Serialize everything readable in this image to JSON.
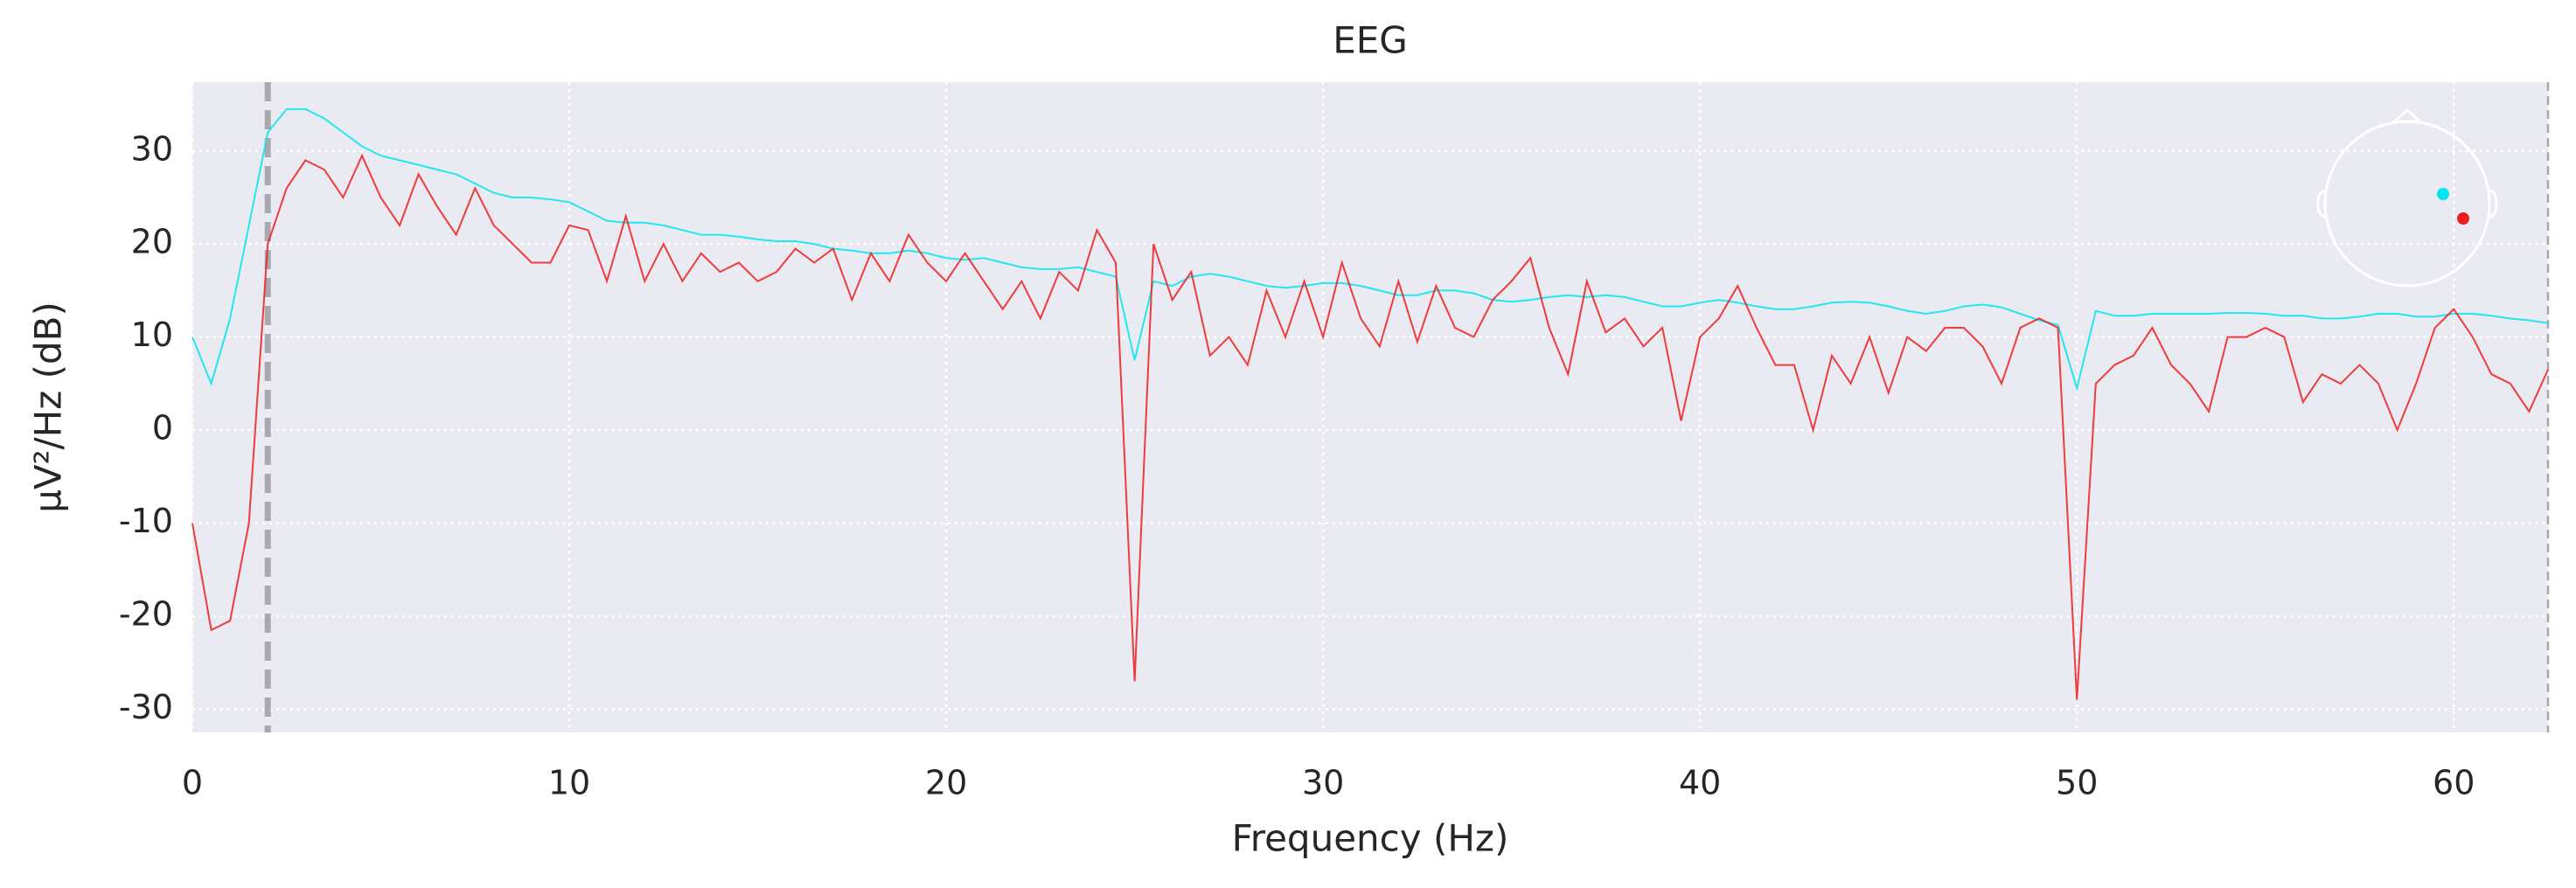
{
  "chart_data": {
    "type": "line",
    "title": "EEG",
    "xlabel": "Frequency (Hz)",
    "ylabel": "µV²/Hz (dB)",
    "x": [
      0,
      0.5,
      1,
      1.5,
      2,
      2.5,
      3,
      3.5,
      4,
      4.5,
      5,
      5.5,
      6,
      6.5,
      7,
      7.5,
      8,
      8.5,
      9,
      9.5,
      10,
      10.5,
      11,
      11.5,
      12,
      12.5,
      13,
      13.5,
      14,
      14.5,
      15,
      15.5,
      16,
      16.5,
      17,
      17.5,
      18,
      18.5,
      19,
      19.5,
      20,
      20.5,
      21,
      21.5,
      22,
      22.5,
      23,
      23.5,
      24,
      24.5,
      25,
      25.5,
      26,
      26.5,
      27,
      27.5,
      28,
      28.5,
      29,
      29.5,
      30,
      30.5,
      31,
      31.5,
      32,
      32.5,
      33,
      33.5,
      34,
      34.5,
      35,
      35.5,
      36,
      36.5,
      37,
      37.5,
      38,
      38.5,
      39,
      39.5,
      40,
      40.5,
      41,
      41.5,
      42,
      42.5,
      43,
      43.5,
      44,
      44.5,
      45,
      45.5,
      46,
      46.5,
      47,
      47.5,
      48,
      48.5,
      49,
      49.5,
      50,
      50.5,
      51,
      51.5,
      52,
      52.5,
      53,
      53.5,
      54,
      54.5,
      55,
      55.5,
      56,
      56.5,
      57,
      57.5,
      58,
      58.5,
      59,
      59.5,
      60,
      60.5,
      61,
      61.5,
      62,
      62.5
    ],
    "series": [
      {
        "color": "#00e5ee",
        "values": [
          10,
          5,
          12,
          22,
          32,
          34.5,
          34.5,
          33.5,
          32,
          30.5,
          29.5,
          29,
          28.5,
          28,
          27.5,
          26.5,
          25.5,
          25,
          25,
          24.8,
          24.5,
          23.5,
          22.5,
          22.3,
          22.3,
          22,
          21.5,
          21,
          21,
          20.8,
          20.5,
          20.3,
          20.3,
          20,
          19.5,
          19.3,
          19,
          19,
          19.3,
          19,
          18.5,
          18.3,
          18.5,
          18,
          17.5,
          17.3,
          17.3,
          17.5,
          17,
          16.5,
          7.5,
          16,
          15.5,
          16.5,
          16.8,
          16.5,
          16,
          15.5,
          15.3,
          15.5,
          15.8,
          15.8,
          15.5,
          15,
          14.5,
          14.5,
          15,
          15,
          14.7,
          14,
          13.8,
          14,
          14.3,
          14.5,
          14.3,
          14.5,
          14.3,
          13.8,
          13.3,
          13.3,
          13.7,
          14,
          13.7,
          13.3,
          13,
          13,
          13.3,
          13.7,
          13.8,
          13.7,
          13.3,
          12.8,
          12.5,
          12.8,
          13.3,
          13.5,
          13.2,
          12.5,
          11.8,
          11.3,
          4.5,
          12.8,
          12.3,
          12.3,
          12.5,
          12.5,
          12.5,
          12.5,
          12.6,
          12.6,
          12.5,
          12.3,
          12.3,
          12,
          12,
          12.2,
          12.5,
          12.5,
          12.2,
          12.2,
          12.5,
          12.5,
          12.3,
          12,
          11.8,
          11.5
        ]
      },
      {
        "color": "#ee1c1c",
        "values": [
          -10,
          -21.5,
          -20.5,
          -10,
          20,
          26,
          29,
          28,
          25,
          29.5,
          25,
          22,
          27.5,
          24,
          21,
          26,
          22,
          20,
          18,
          18,
          22,
          21.5,
          16,
          23,
          16,
          20,
          16,
          19,
          17,
          18,
          16,
          17,
          19.5,
          18,
          19.5,
          14,
          19,
          16,
          21,
          18,
          16,
          19,
          16,
          13,
          16,
          12,
          17,
          15,
          21.5,
          18,
          -27,
          20,
          14,
          17,
          8,
          10,
          7,
          15,
          10,
          16,
          10,
          18,
          12,
          9,
          16,
          9.5,
          15.5,
          11,
          10,
          14,
          16,
          18.5,
          11,
          6,
          16,
          10.5,
          12,
          9,
          11,
          1,
          10,
          12,
          15.5,
          11,
          7,
          7,
          0,
          8,
          5,
          10,
          4,
          10,
          8.5,
          11,
          11,
          9,
          5,
          11,
          12,
          11,
          -29,
          5,
          7,
          8,
          11,
          7,
          5,
          2,
          10,
          10,
          11,
          10,
          3,
          6,
          5,
          7,
          5,
          0,
          5,
          11,
          13,
          10,
          6,
          5,
          2,
          6.5
        ]
      }
    ],
    "xlim": [
      0,
      62.5
    ],
    "ylim": [
      -32.5,
      37.4
    ],
    "xticks": [
      0,
      10,
      20,
      30,
      40,
      50,
      60
    ],
    "yticks": [
      -30,
      -20,
      -10,
      0,
      10,
      20,
      30
    ],
    "vlines": [
      2,
      62.5
    ],
    "grid": true
  }
}
